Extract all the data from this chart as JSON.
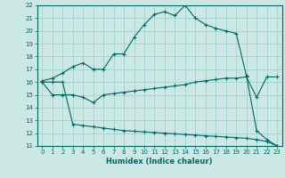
{
  "xlabel": "Humidex (Indice chaleur)",
  "bg_color": "#cce8e4",
  "grid_color": "#99cccc",
  "line_color": "#006666",
  "xlim": [
    -0.5,
    23.5
  ],
  "ylim": [
    11,
    22
  ],
  "xticks": [
    0,
    1,
    2,
    3,
    4,
    5,
    6,
    7,
    8,
    9,
    10,
    11,
    12,
    13,
    14,
    15,
    16,
    17,
    18,
    19,
    20,
    21,
    22,
    23
  ],
  "yticks": [
    11,
    12,
    13,
    14,
    15,
    16,
    17,
    18,
    19,
    20,
    21,
    22
  ],
  "line1_x": [
    0,
    1,
    2,
    3,
    4,
    5,
    6,
    7,
    8,
    9,
    10,
    11,
    12,
    13,
    14,
    15,
    16,
    17,
    18,
    19,
    20,
    21,
    22,
    23
  ],
  "line1_y": [
    16.1,
    16.3,
    16.7,
    17.2,
    17.5,
    17.0,
    17.0,
    18.2,
    18.2,
    19.5,
    20.5,
    21.3,
    21.5,
    21.2,
    22.0,
    21.0,
    20.5,
    20.2,
    20.0,
    19.8,
    16.5,
    12.2,
    11.5,
    11.0
  ],
  "line2_x": [
    0,
    1,
    2,
    3,
    4,
    5,
    6,
    7,
    8,
    9,
    10,
    11,
    12,
    13,
    14,
    15,
    16,
    17,
    18,
    19,
    20,
    21,
    22,
    23
  ],
  "line2_y": [
    16.0,
    15.0,
    15.0,
    15.0,
    14.8,
    14.4,
    15.0,
    15.1,
    15.2,
    15.3,
    15.4,
    15.5,
    15.6,
    15.7,
    15.8,
    16.0,
    16.1,
    16.2,
    16.3,
    16.3,
    16.4,
    14.8,
    16.4,
    16.4
  ],
  "line3_x": [
    0,
    1,
    2,
    3,
    4,
    5,
    6,
    7,
    8,
    9,
    10,
    11,
    12,
    13,
    14,
    15,
    16,
    17,
    18,
    19,
    20,
    21,
    22,
    23
  ],
  "line3_y": [
    16.0,
    16.0,
    16.0,
    12.7,
    12.6,
    12.5,
    12.4,
    12.3,
    12.2,
    12.15,
    12.1,
    12.05,
    12.0,
    11.95,
    11.9,
    11.85,
    11.8,
    11.75,
    11.7,
    11.65,
    11.6,
    11.5,
    11.35,
    11.0
  ]
}
